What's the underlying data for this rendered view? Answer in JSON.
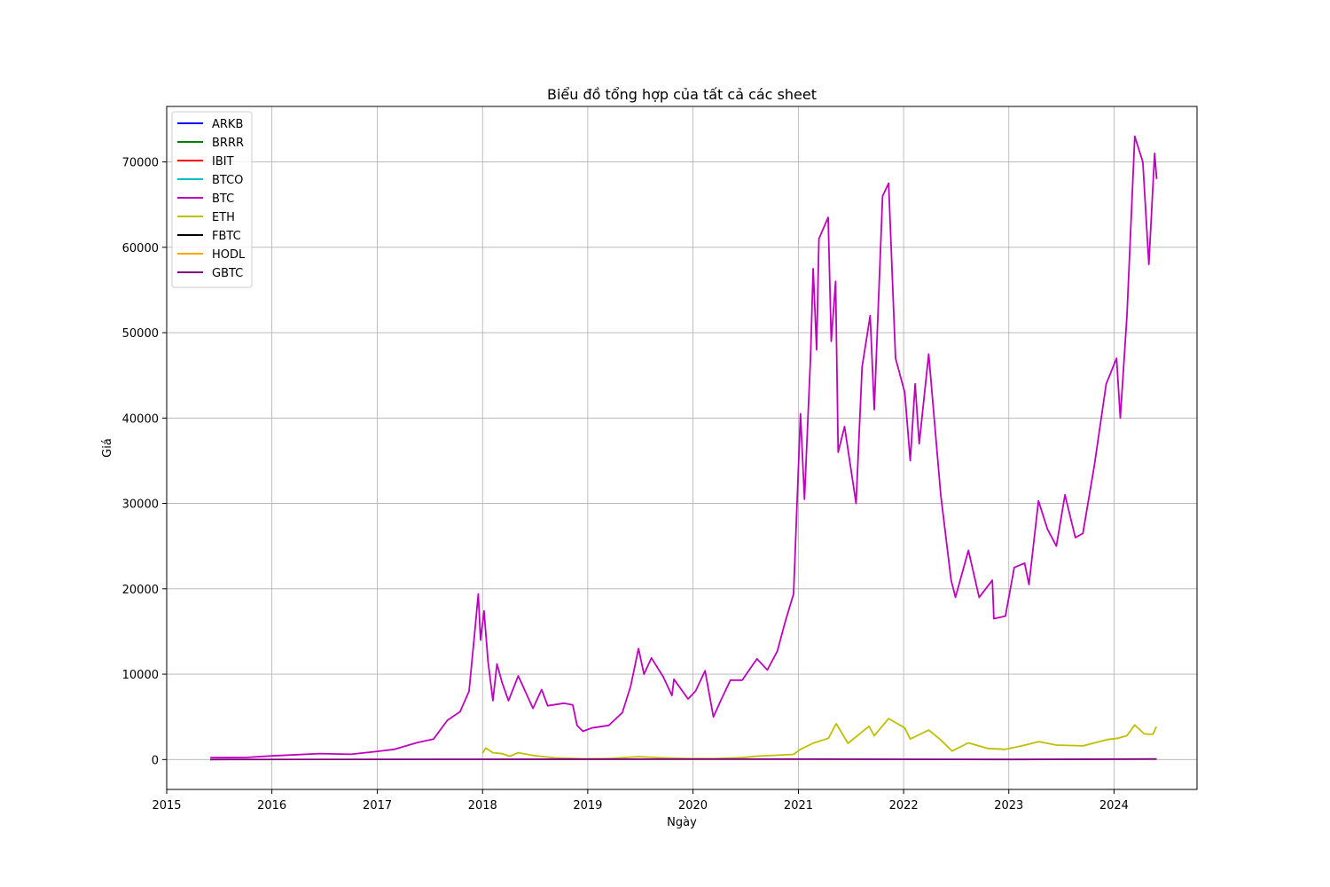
{
  "chart_data": {
    "type": "line",
    "title": "Biểu đồ tổng hợp của tất cả các sheet",
    "xlabel": "Ngày",
    "ylabel": "Giá",
    "x_ticks": [
      "2015",
      "2016",
      "2017",
      "2018",
      "2019",
      "2020",
      "2021",
      "2022",
      "2023",
      "2024"
    ],
    "y_ticks": [
      "0",
      "10000",
      "20000",
      "30000",
      "40000",
      "50000",
      "60000",
      "70000"
    ],
    "xlim": [
      "2015-01-01",
      "2024-10-15"
    ],
    "ylim": [
      -3500,
      76500
    ],
    "grid": true,
    "legend_position": "top-left",
    "series": [
      {
        "name": "ARKB",
        "color": "#0000ff",
        "points": []
      },
      {
        "name": "BRRR",
        "color": "#008000",
        "points": []
      },
      {
        "name": "IBIT",
        "color": "#ff0000",
        "points": []
      },
      {
        "name": "BTCO",
        "color": "#00bfbf",
        "points": []
      },
      {
        "name": "BTC",
        "color": "#bf00bf",
        "points": [
          [
            "2015-06-01",
            230
          ],
          [
            "2015-10-01",
            240
          ],
          [
            "2016-01-01",
            430
          ],
          [
            "2016-06-15",
            700
          ],
          [
            "2016-10-01",
            610
          ],
          [
            "2017-01-01",
            960
          ],
          [
            "2017-03-01",
            1200
          ],
          [
            "2017-05-20",
            2000
          ],
          [
            "2017-07-15",
            2400
          ],
          [
            "2017-09-01",
            4600
          ],
          [
            "2017-10-15",
            5600
          ],
          [
            "2017-11-15",
            8000
          ],
          [
            "2017-12-05",
            15000
          ],
          [
            "2017-12-17",
            19400
          ],
          [
            "2017-12-25",
            14000
          ],
          [
            "2018-01-06",
            17400
          ],
          [
            "2018-01-20",
            11500
          ],
          [
            "2018-02-06",
            6900
          ],
          [
            "2018-02-20",
            11200
          ],
          [
            "2018-03-10",
            9000
          ],
          [
            "2018-04-01",
            6900
          ],
          [
            "2018-05-05",
            9800
          ],
          [
            "2018-06-25",
            6000
          ],
          [
            "2018-07-25",
            8200
          ],
          [
            "2018-08-15",
            6300
          ],
          [
            "2018-10-10",
            6600
          ],
          [
            "2018-11-10",
            6400
          ],
          [
            "2018-11-25",
            4000
          ],
          [
            "2018-12-15",
            3300
          ],
          [
            "2019-01-15",
            3700
          ],
          [
            "2019-03-15",
            4000
          ],
          [
            "2019-05-01",
            5500
          ],
          [
            "2019-05-30",
            8600
          ],
          [
            "2019-06-26",
            13000
          ],
          [
            "2019-07-15",
            10000
          ],
          [
            "2019-08-10",
            11900
          ],
          [
            "2019-09-20",
            9700
          ],
          [
            "2019-10-20",
            7500
          ],
          [
            "2019-10-27",
            9400
          ],
          [
            "2019-12-15",
            7100
          ],
          [
            "2020-01-10",
            8000
          ],
          [
            "2020-02-12",
            10400
          ],
          [
            "2020-03-12",
            5000
          ],
          [
            "2020-04-05",
            6800
          ],
          [
            "2020-05-10",
            9300
          ],
          [
            "2020-06-20",
            9300
          ],
          [
            "2020-08-10",
            11800
          ],
          [
            "2020-09-15",
            10500
          ],
          [
            "2020-10-20",
            12700
          ],
          [
            "2020-11-15",
            16000
          ],
          [
            "2020-12-15",
            19400
          ],
          [
            "2021-01-08",
            40500
          ],
          [
            "2021-01-22",
            30500
          ],
          [
            "2021-02-12",
            47000
          ],
          [
            "2021-02-21",
            57500
          ],
          [
            "2021-03-05",
            48000
          ],
          [
            "2021-03-13",
            61000
          ],
          [
            "2021-04-14",
            63500
          ],
          [
            "2021-04-25",
            49000
          ],
          [
            "2021-05-10",
            56000
          ],
          [
            "2021-05-19",
            36000
          ],
          [
            "2021-06-10",
            39000
          ],
          [
            "2021-07-20",
            30000
          ],
          [
            "2021-08-10",
            46000
          ],
          [
            "2021-09-07",
            52000
          ],
          [
            "2021-09-21",
            41000
          ],
          [
            "2021-10-20",
            66000
          ],
          [
            "2021-11-10",
            67500
          ],
          [
            "2021-12-04",
            47000
          ],
          [
            "2022-01-05",
            43000
          ],
          [
            "2022-01-24",
            35000
          ],
          [
            "2022-02-10",
            44000
          ],
          [
            "2022-02-24",
            37000
          ],
          [
            "2022-03-29",
            47500
          ],
          [
            "2022-05-10",
            31000
          ],
          [
            "2022-06-15",
            21000
          ],
          [
            "2022-06-30",
            19000
          ],
          [
            "2022-08-14",
            24500
          ],
          [
            "2022-09-20",
            19000
          ],
          [
            "2022-11-05",
            21000
          ],
          [
            "2022-11-10",
            16500
          ],
          [
            "2022-12-20",
            16800
          ],
          [
            "2023-01-20",
            22500
          ],
          [
            "2023-02-25",
            23000
          ],
          [
            "2023-03-12",
            20500
          ],
          [
            "2023-04-14",
            30300
          ],
          [
            "2023-05-15",
            27000
          ],
          [
            "2023-06-15",
            25000
          ],
          [
            "2023-07-15",
            31000
          ],
          [
            "2023-08-20",
            26000
          ],
          [
            "2023-09-15",
            26500
          ],
          [
            "2023-10-25",
            34500
          ],
          [
            "2023-12-05",
            44000
          ],
          [
            "2024-01-10",
            47000
          ],
          [
            "2024-01-23",
            40000
          ],
          [
            "2024-02-15",
            52000
          ],
          [
            "2024-03-13",
            73000
          ],
          [
            "2024-04-10",
            70000
          ],
          [
            "2024-05-01",
            58000
          ],
          [
            "2024-05-21",
            71000
          ],
          [
            "2024-05-28",
            68000
          ]
        ]
      },
      {
        "name": "ETH",
        "color": "#bfbf00",
        "points": [
          [
            "2018-01-01",
            750
          ],
          [
            "2018-01-12",
            1350
          ],
          [
            "2018-02-06",
            800
          ],
          [
            "2018-03-10",
            700
          ],
          [
            "2018-04-05",
            380
          ],
          [
            "2018-05-05",
            800
          ],
          [
            "2018-07-01",
            450
          ],
          [
            "2018-09-10",
            200
          ],
          [
            "2018-12-15",
            90
          ],
          [
            "2019-03-15",
            130
          ],
          [
            "2019-06-26",
            330
          ],
          [
            "2019-09-20",
            200
          ],
          [
            "2019-12-15",
            130
          ],
          [
            "2020-03-12",
            110
          ],
          [
            "2020-06-20",
            230
          ],
          [
            "2020-08-10",
            400
          ],
          [
            "2020-12-15",
            600
          ],
          [
            "2021-01-08",
            1200
          ],
          [
            "2021-02-20",
            1900
          ],
          [
            "2021-04-15",
            2500
          ],
          [
            "2021-05-12",
            4200
          ],
          [
            "2021-06-22",
            1900
          ],
          [
            "2021-09-03",
            3900
          ],
          [
            "2021-09-21",
            2800
          ],
          [
            "2021-11-10",
            4800
          ],
          [
            "2022-01-05",
            3700
          ],
          [
            "2022-01-24",
            2400
          ],
          [
            "2022-03-29",
            3450
          ],
          [
            "2022-05-10",
            2300
          ],
          [
            "2022-06-18",
            1000
          ],
          [
            "2022-08-14",
            1950
          ],
          [
            "2022-10-20",
            1300
          ],
          [
            "2022-12-20",
            1200
          ],
          [
            "2023-02-15",
            1600
          ],
          [
            "2023-04-15",
            2100
          ],
          [
            "2023-06-15",
            1700
          ],
          [
            "2023-09-15",
            1600
          ],
          [
            "2023-12-10",
            2350
          ],
          [
            "2024-01-15",
            2500
          ],
          [
            "2024-02-15",
            2800
          ],
          [
            "2024-03-13",
            4050
          ],
          [
            "2024-04-15",
            3000
          ],
          [
            "2024-05-15",
            2950
          ],
          [
            "2024-05-27",
            3850
          ]
        ]
      },
      {
        "name": "FBTC",
        "color": "#000000",
        "points": []
      },
      {
        "name": "HODL",
        "color": "#ffa500",
        "points": []
      },
      {
        "name": "GBTC",
        "color": "#800080",
        "points": [
          [
            "2015-06-01",
            5
          ],
          [
            "2017-12-17",
            35
          ],
          [
            "2021-02-15",
            55
          ],
          [
            "2022-12-15",
            8
          ],
          [
            "2024-05-28",
            60
          ]
        ]
      }
    ]
  }
}
